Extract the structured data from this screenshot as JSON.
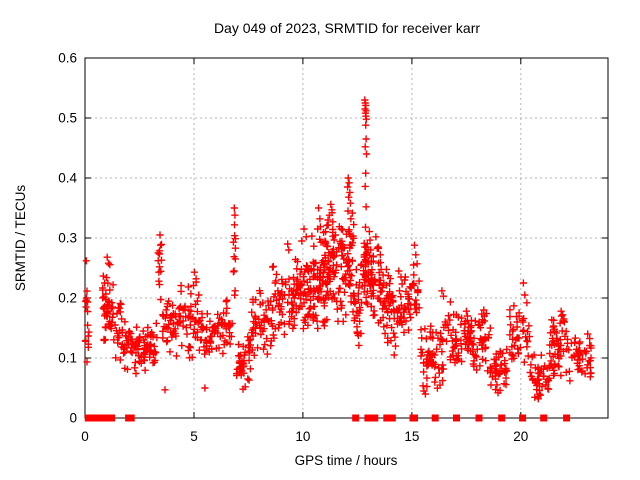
{
  "chart_data": {
    "type": "scatter",
    "title": "Day 049 of 2023, SRMTID for receiver karr",
    "xlabel": "GPS time / hours",
    "ylabel": "SRMTID / TECUs",
    "xlim": [
      0,
      24
    ],
    "ylim": [
      0,
      0.6
    ],
    "xticks": [
      0,
      5,
      10,
      15,
      20
    ],
    "ytick_labels": [
      "0",
      "0.1",
      "0.2",
      "0.3",
      "0.4",
      "0.5",
      "0.6"
    ],
    "ytick_values": [
      0,
      0.1,
      0.2,
      0.3,
      0.4,
      0.5,
      0.6
    ],
    "grid": true,
    "legend": false,
    "marker": "plus",
    "marker_color": "#ff0000",
    "zero_marker": "filled-square",
    "bands_format": "[t_start,t_end,v_min,v_max,count]",
    "bands": [
      [
        0.03,
        0.2,
        0.07,
        0.26,
        14
      ],
      [
        0.8,
        1.3,
        0.1,
        0.265,
        45
      ],
      [
        1.3,
        1.75,
        0.09,
        0.2,
        22
      ],
      [
        1.75,
        2.2,
        0.075,
        0.165,
        25
      ],
      [
        2.2,
        3.3,
        0.07,
        0.16,
        65
      ],
      [
        3.35,
        3.55,
        0.17,
        0.305,
        11
      ],
      [
        3.55,
        4.4,
        0.1,
        0.215,
        45
      ],
      [
        4.4,
        5.3,
        0.085,
        0.24,
        45
      ],
      [
        5.3,
        6.4,
        0.085,
        0.19,
        55
      ],
      [
        6.4,
        6.8,
        0.1,
        0.2,
        18
      ],
      [
        6.8,
        6.95,
        0.18,
        0.32,
        7
      ],
      [
        6.95,
        7.6,
        0.05,
        0.145,
        40
      ],
      [
        7.6,
        8.6,
        0.1,
        0.22,
        52
      ],
      [
        8.6,
        9.6,
        0.12,
        0.27,
        60
      ],
      [
        9.6,
        10.4,
        0.13,
        0.3,
        60
      ],
      [
        10.4,
        11.0,
        0.13,
        0.33,
        60
      ],
      [
        11.0,
        11.7,
        0.15,
        0.345,
        68
      ],
      [
        11.7,
        12.35,
        0.15,
        0.355,
        65
      ],
      [
        12.35,
        12.75,
        0.08,
        0.3,
        26
      ],
      [
        12.78,
        13.1,
        0.17,
        0.32,
        40
      ],
      [
        13.1,
        13.7,
        0.15,
        0.3,
        50
      ],
      [
        13.7,
        14.3,
        0.1,
        0.25,
        40
      ],
      [
        14.3,
        15.0,
        0.1,
        0.245,
        40
      ],
      [
        15.0,
        15.35,
        0.13,
        0.285,
        15
      ],
      [
        15.35,
        16.5,
        0.04,
        0.17,
        60
      ],
      [
        16.5,
        17.3,
        0.07,
        0.2,
        40
      ],
      [
        17.3,
        17.8,
        0.1,
        0.18,
        30
      ],
      [
        17.8,
        18.6,
        0.07,
        0.18,
        42
      ],
      [
        18.6,
        19.4,
        0.04,
        0.12,
        40
      ],
      [
        19.4,
        20.4,
        0.06,
        0.2,
        42
      ],
      [
        20.4,
        21.3,
        0.03,
        0.11,
        42
      ],
      [
        21.3,
        22.1,
        0.05,
        0.18,
        50
      ],
      [
        22.1,
        23.25,
        0.06,
        0.145,
        50
      ]
    ],
    "outliers": [
      [
        12.84,
        0.53
      ],
      [
        12.86,
        0.525
      ],
      [
        12.88,
        0.521
      ],
      [
        12.85,
        0.515
      ],
      [
        12.9,
        0.512
      ],
      [
        12.87,
        0.508
      ],
      [
        12.89,
        0.503
      ],
      [
        12.91,
        0.498
      ],
      [
        12.88,
        0.488
      ],
      [
        12.9,
        0.465
      ],
      [
        12.86,
        0.452
      ],
      [
        12.92,
        0.44
      ],
      [
        12.88,
        0.408
      ],
      [
        12.86,
        0.386
      ],
      [
        12.9,
        0.352
      ],
      [
        12.87,
        0.318
      ],
      [
        12.08,
        0.4
      ],
      [
        12.12,
        0.392
      ],
      [
        12.05,
        0.385
      ],
      [
        12.15,
        0.376
      ],
      [
        12.1,
        0.368
      ],
      [
        12.18,
        0.358
      ],
      [
        12.07,
        0.345
      ],
      [
        12.2,
        0.332
      ],
      [
        11.28,
        0.356
      ],
      [
        11.33,
        0.347
      ],
      [
        11.22,
        0.338
      ],
      [
        11.15,
        0.33
      ],
      [
        10.72,
        0.35
      ],
      [
        10.78,
        0.332
      ],
      [
        10.68,
        0.315
      ],
      [
        10.05,
        0.315
      ],
      [
        10.15,
        0.302
      ],
      [
        9.95,
        0.295
      ],
      [
        9.3,
        0.29
      ],
      [
        9.35,
        0.28
      ],
      [
        6.85,
        0.35
      ],
      [
        6.88,
        0.338
      ],
      [
        6.86,
        0.322
      ],
      [
        6.9,
        0.283
      ],
      [
        6.84,
        0.245
      ],
      [
        6.89,
        0.212
      ],
      [
        3.44,
        0.305
      ],
      [
        3.47,
        0.288
      ],
      [
        3.42,
        0.252
      ],
      [
        1.02,
        0.268
      ],
      [
        1.08,
        0.258
      ],
      [
        0.06,
        0.262
      ],
      [
        0.07,
        0.2
      ],
      [
        0.05,
        0.185
      ],
      [
        13.35,
        0.302
      ],
      [
        13.45,
        0.285
      ],
      [
        13.55,
        0.272
      ],
      [
        15.12,
        0.288
      ],
      [
        15.18,
        0.272
      ],
      [
        15.08,
        0.255
      ],
      [
        16.38,
        0.212
      ],
      [
        16.45,
        0.203
      ],
      [
        17.5,
        0.178
      ],
      [
        17.55,
        0.17
      ],
      [
        18.3,
        0.18
      ],
      [
        18.42,
        0.174
      ],
      [
        20.12,
        0.225
      ],
      [
        20.18,
        0.205
      ],
      [
        20.28,
        0.192
      ],
      [
        21.85,
        0.178
      ],
      [
        21.92,
        0.172
      ],
      [
        21.97,
        0.165
      ],
      [
        21.8,
        0.158
      ],
      [
        22.0,
        0.16
      ],
      [
        14.4,
        0.245
      ],
      [
        14.5,
        0.235
      ],
      [
        5.02,
        0.243
      ],
      [
        5.1,
        0.232
      ],
      [
        3.67,
        0.047
      ],
      [
        5.5,
        0.05
      ],
      [
        7.25,
        0.048
      ],
      [
        7.35,
        0.052
      ],
      [
        15.55,
        0.045
      ],
      [
        15.62,
        0.04
      ],
      [
        18.95,
        0.042
      ],
      [
        19.05,
        0.046
      ],
      [
        20.8,
        0.032
      ],
      [
        20.9,
        0.038
      ],
      [
        22.25,
        0.062
      ]
    ],
    "zeros": [
      0.15,
      0.18,
      0.22,
      0.25,
      0.28,
      0.32,
      0.35,
      0.38,
      0.42,
      0.45,
      0.5,
      0.55,
      0.62,
      0.66,
      0.7,
      0.75,
      0.8,
      1.08,
      1.15,
      1.22,
      2.0,
      2.12,
      12.42,
      12.98,
      13.06,
      13.22,
      13.3,
      13.85,
      14.1,
      15.05,
      15.12,
      16.07,
      17.05,
      18.08,
      19.12,
      20.08,
      21.05,
      22.1
    ]
  },
  "plot_style": {
    "background": "#ffffff",
    "grid_color": "#b4b4b4",
    "border_color": "#000000",
    "text_color": "#000000",
    "accent": "#ff0000"
  }
}
